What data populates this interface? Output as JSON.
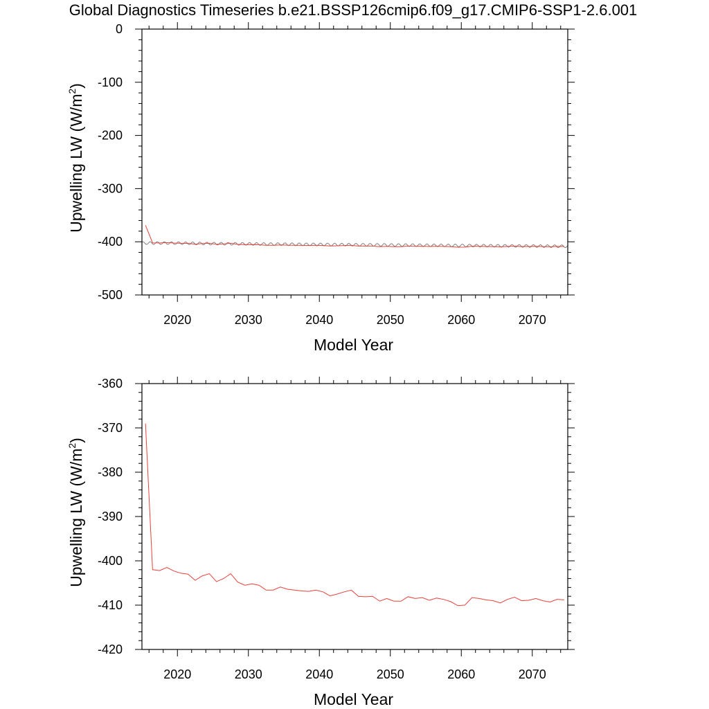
{
  "figure_title": "Global Diagnostics Timeseries b.e21.BSSP126cmip6.f09_g17.CMIP6-SSP1-2.6.001",
  "chart_data": [
    {
      "type": "line",
      "title": "Global Diagnostics Timeseries b.e21.BSSP126cmip6.f09_g17.CMIP6-SSP1-2.6.001",
      "xlabel": "Model Year",
      "ylabel_main": "Upwelling LW (W/m",
      "ylabel_sup": "2",
      "ylabel_close": ")",
      "xlim": [
        2015,
        2075
      ],
      "ylim": [
        -500,
        0
      ],
      "xticks": [
        2020,
        2030,
        2040,
        2050,
        2060,
        2070
      ],
      "yticks": [
        0,
        -100,
        -200,
        -300,
        -400,
        -500
      ],
      "grid": false,
      "series": [
        {
          "color": "#808080",
          "kind": "monthly",
          "x_start": 2015.0,
          "x_end": 2075.0,
          "points_per_year": 12,
          "base": [
            -402.5,
            -402.5,
            -403.5,
            -404,
            -404.5,
            -405,
            -405.5,
            -406,
            -406.5,
            -407,
            -407.5,
            -408,
            -408.5
          ],
          "base_years": [
            2015,
            2020,
            2025,
            2030,
            2035,
            2040,
            2045,
            2050,
            2055,
            2060,
            2065,
            2070,
            2075
          ],
          "amplitude": 2.5
        },
        {
          "color": "#e8403a",
          "kind": "annual",
          "x": [
            2015.5,
            2016.5,
            2017.5,
            2018.5,
            2019.5,
            2020.5,
            2021.5,
            2022.5,
            2023.5,
            2024.5,
            2025.5,
            2026.5,
            2027.5,
            2028.5,
            2029.5,
            2030.5,
            2031.5,
            2032.5,
            2033.5,
            2034.5,
            2035.5,
            2036.5,
            2037.5,
            2038.5,
            2039.5,
            2040.5,
            2041.5,
            2042.5,
            2043.5,
            2044.5,
            2045.5,
            2046.5,
            2047.5,
            2048.5,
            2049.5,
            2050.5,
            2051.5,
            2052.5,
            2053.5,
            2054.5,
            2055.5,
            2056.5,
            2057.5,
            2058.5,
            2059.5,
            2060.5,
            2061.5,
            2062.5,
            2063.5,
            2064.5,
            2065.5,
            2066.5,
            2067.5,
            2068.5,
            2069.5,
            2070.5,
            2071.5,
            2072.5,
            2073.5,
            2074.5
          ],
          "y": [
            -369,
            -402,
            -402.2,
            -401.5,
            -402.3,
            -402.8,
            -403,
            -404.4,
            -403.4,
            -402.9,
            -404.7,
            -404,
            -402.9,
            -404.8,
            -405.5,
            -405.2,
            -405.5,
            -406.6,
            -406.6,
            -405.9,
            -406.4,
            -406.6,
            -406.8,
            -406.9,
            -406.6,
            -407,
            -407.9,
            -407.5,
            -407,
            -406.6,
            -408,
            -408.1,
            -408,
            -409.1,
            -408.5,
            -409.1,
            -409.1,
            -408.1,
            -408.5,
            -408.3,
            -408.9,
            -408.4,
            -408.7,
            -409.2,
            -410.1,
            -410,
            -408.3,
            -408.5,
            -408.8,
            -409,
            -409.5,
            -408.7,
            -408.2,
            -409,
            -408.9,
            -408.5,
            -409,
            -409.3,
            -408.7,
            -408.8
          ]
        }
      ]
    },
    {
      "type": "line",
      "title": "",
      "xlabel": "Model Year",
      "ylabel_main": "Upwelling LW (W/m",
      "ylabel_sup": "2",
      "ylabel_close": ")",
      "xlim": [
        2015,
        2075
      ],
      "ylim": [
        -420,
        -360
      ],
      "xticks": [
        2020,
        2030,
        2040,
        2050,
        2060,
        2070
      ],
      "yticks": [
        -360,
        -370,
        -380,
        -390,
        -400,
        -410,
        -420
      ],
      "grid": false,
      "series_ref": 1
    }
  ]
}
